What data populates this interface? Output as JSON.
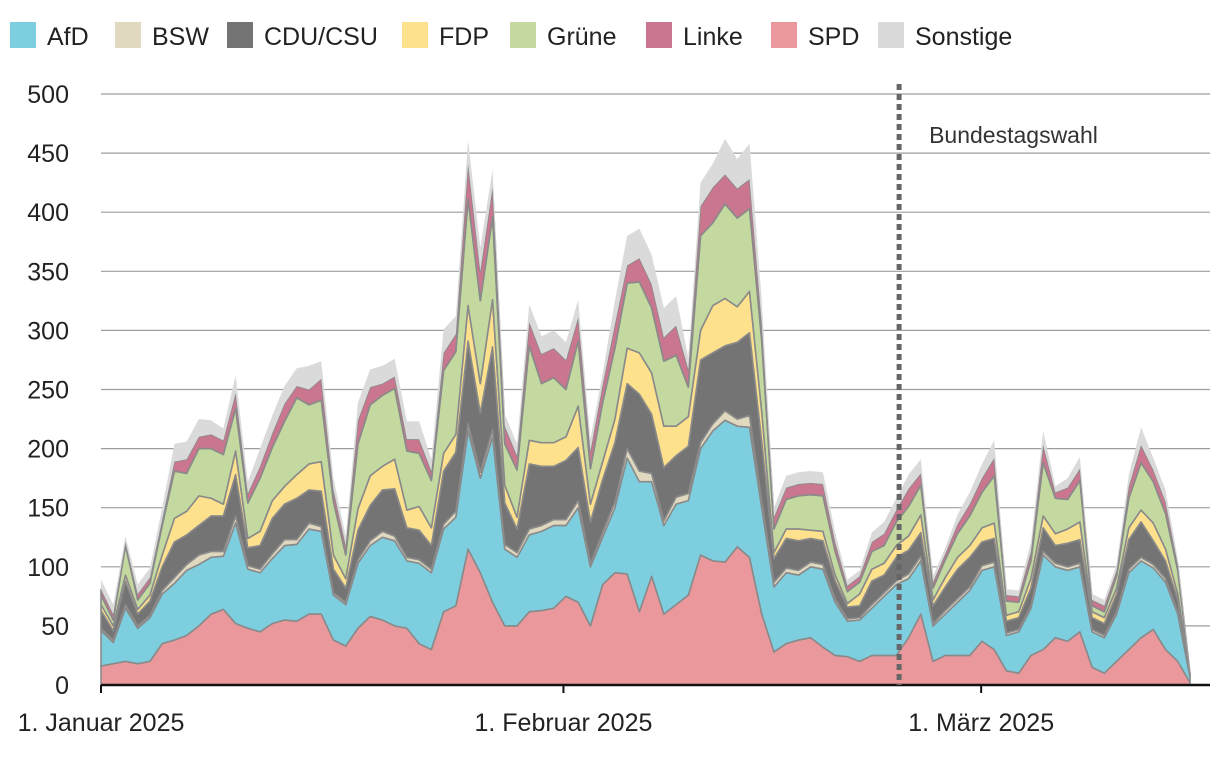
{
  "chart_data": {
    "type": "area",
    "stacked": true,
    "title": "",
    "xlabel": "",
    "ylabel": "",
    "ylim": [
      0,
      500
    ],
    "yticks": [
      0,
      50,
      100,
      150,
      200,
      250,
      300,
      350,
      400,
      450,
      500
    ],
    "x_start_day": 1,
    "x_end_day": 74,
    "xticks": [
      {
        "day": 1,
        "label": "1. Januar 2025"
      },
      {
        "day": 32,
        "label": "1. Februar 2025"
      },
      {
        "day": 60,
        "label": "1. März 2025"
      }
    ],
    "annotation": {
      "day": 54.5,
      "label": "Bundestagswahl"
    },
    "grid": true,
    "legend_position": "top",
    "series": [
      {
        "name": "SPD",
        "color": "#ea989c",
        "values": [
          16,
          18,
          20,
          18,
          20,
          35,
          38,
          42,
          50,
          60,
          64,
          52,
          48,
          45,
          52,
          55,
          54,
          60,
          60,
          38,
          33,
          48,
          58,
          55,
          50,
          48,
          35,
          30,
          62,
          67,
          115,
          95,
          70,
          50,
          50,
          62,
          63,
          65,
          75,
          70,
          50,
          85,
          95,
          94,
          62,
          92,
          60,
          68,
          76,
          110,
          105,
          104,
          117,
          108,
          60,
          28,
          35,
          38,
          40,
          32,
          25,
          24,
          20,
          25,
          25,
          25,
          40,
          60,
          20,
          25,
          25,
          25,
          37,
          30,
          12,
          10,
          25,
          30,
          40,
          37,
          45,
          15,
          10,
          20,
          30,
          40,
          47,
          30,
          20,
          2
        ]
      },
      {
        "name": "AfD",
        "color": "#7dcfe0",
        "values": [
          30,
          18,
          45,
          30,
          37,
          42,
          48,
          55,
          52,
          48,
          45,
          85,
          50,
          50,
          55,
          63,
          65,
          72,
          70,
          38,
          35,
          55,
          60,
          70,
          72,
          57,
          68,
          65,
          70,
          75,
          100,
          80,
          140,
          65,
          58,
          65,
          67,
          70,
          60,
          80,
          50,
          40,
          55,
          98,
          110,
          80,
          75,
          85,
          80,
          90,
          110,
          120,
          102,
          110,
          90,
          55,
          60,
          55,
          60,
          66,
          45,
          30,
          35,
          40,
          50,
          60,
          50,
          45,
          30,
          35,
          45,
          55,
          60,
          70,
          30,
          35,
          40,
          80,
          60,
          60,
          55,
          30,
          30,
          40,
          65,
          65,
          52,
          57,
          40,
          5
        ]
      },
      {
        "name": "BSW",
        "color": "#e0d9c0",
        "values": [
          2,
          2,
          3,
          2,
          2,
          3,
          5,
          5,
          8,
          5,
          4,
          6,
          3,
          3,
          4,
          5,
          4,
          5,
          4,
          2,
          2,
          3,
          4,
          5,
          4,
          3,
          3,
          3,
          4,
          5,
          6,
          5,
          6,
          4,
          4,
          5,
          5,
          5,
          5,
          6,
          3,
          4,
          5,
          8,
          9,
          7,
          4,
          6,
          6,
          5,
          6,
          8,
          6,
          10,
          6,
          4,
          4,
          4,
          4,
          4,
          3,
          2,
          2,
          3,
          3,
          3,
          4,
          4,
          2,
          3,
          3,
          3,
          4,
          4,
          2,
          2,
          2,
          3,
          3,
          3,
          3,
          2,
          2,
          2,
          3,
          3,
          3,
          3,
          2,
          0
        ]
      },
      {
        "name": "CDU/CSU",
        "color": "#747474",
        "values": [
          15,
          8,
          20,
          10,
          12,
          20,
          30,
          25,
          25,
          30,
          30,
          35,
          15,
          20,
          30,
          30,
          35,
          28,
          30,
          20,
          12,
          25,
          30,
          35,
          40,
          25,
          25,
          20,
          45,
          50,
          70,
          50,
          70,
          35,
          20,
          55,
          50,
          45,
          50,
          45,
          35,
          45,
          50,
          55,
          65,
          50,
          45,
          35,
          40,
          70,
          60,
          55,
          65,
          70,
          50,
          20,
          25,
          25,
          20,
          20,
          15,
          10,
          10,
          20,
          15,
          20,
          20,
          20,
          15,
          20,
          25,
          25,
          20,
          20,
          10,
          10,
          15,
          20,
          15,
          20,
          20,
          10,
          10,
          15,
          25,
          30,
          20,
          15,
          10,
          2
        ]
      },
      {
        "name": "FDP",
        "color": "#fde18c",
        "values": [
          5,
          4,
          5,
          4,
          5,
          10,
          20,
          20,
          25,
          15,
          10,
          20,
          8,
          12,
          15,
          15,
          20,
          22,
          25,
          12,
          8,
          18,
          25,
          20,
          25,
          15,
          20,
          15,
          15,
          15,
          30,
          25,
          40,
          15,
          10,
          20,
          20,
          20,
          20,
          35,
          15,
          15,
          20,
          30,
          35,
          35,
          35,
          25,
          25,
          25,
          40,
          40,
          30,
          35,
          25,
          5,
          8,
          10,
          7,
          8,
          5,
          3,
          10,
          10,
          10,
          10,
          12,
          15,
          5,
          8,
          10,
          10,
          12,
          13,
          5,
          5,
          8,
          10,
          10,
          12,
          15,
          5,
          5,
          5,
          10,
          10,
          15,
          10,
          5,
          0
        ]
      },
      {
        "name": "Grüne",
        "color": "#c3d99f",
        "values": [
          8,
          5,
          25,
          8,
          10,
          25,
          40,
          32,
          40,
          42,
          42,
          36,
          30,
          45,
          45,
          55,
          65,
          50,
          52,
          45,
          20,
          55,
          60,
          60,
          60,
          50,
          45,
          40,
          70,
          70,
          90,
          70,
          70,
          35,
          40,
          80,
          50,
          55,
          40,
          55,
          30,
          50,
          60,
          55,
          60,
          55,
          55,
          60,
          25,
          80,
          70,
          80,
          75,
          70,
          60,
          20,
          25,
          28,
          30,
          30,
          20,
          10,
          10,
          15,
          15,
          20,
          25,
          25,
          10,
          15,
          20,
          25,
          30,
          40,
          12,
          8,
          15,
          45,
          30,
          25,
          35,
          5,
          5,
          10,
          25,
          40,
          35,
          30,
          20,
          0
        ]
      },
      {
        "name": "Linke",
        "color": "#c9768e",
        "values": [
          5,
          5,
          3,
          5,
          5,
          5,
          8,
          12,
          10,
          12,
          12,
          13,
          8,
          10,
          12,
          15,
          10,
          13,
          18,
          10,
          8,
          20,
          15,
          10,
          10,
          10,
          12,
          8,
          15,
          15,
          30,
          25,
          25,
          15,
          12,
          20,
          25,
          25,
          25,
          20,
          15,
          15,
          20,
          15,
          20,
          20,
          20,
          25,
          15,
          25,
          30,
          25,
          25,
          25,
          15,
          10,
          10,
          10,
          10,
          10,
          8,
          5,
          5,
          8,
          10,
          10,
          15,
          10,
          5,
          5,
          8,
          10,
          12,
          15,
          5,
          5,
          8,
          15,
          5,
          10,
          10,
          5,
          5,
          5,
          10,
          15,
          10,
          10,
          5,
          0
        ]
      },
      {
        "name": "Sonstige",
        "color": "#dadada",
        "values": [
          8,
          8,
          5,
          8,
          8,
          10,
          15,
          15,
          15,
          12,
          10,
          15,
          10,
          15,
          15,
          15,
          15,
          20,
          15,
          10,
          8,
          15,
          15,
          15,
          15,
          15,
          15,
          10,
          20,
          15,
          20,
          20,
          15,
          10,
          10,
          15,
          15,
          15,
          15,
          15,
          10,
          10,
          20,
          25,
          25,
          25,
          25,
          25,
          10,
          20,
          20,
          30,
          25,
          30,
          20,
          8,
          10,
          10,
          10,
          10,
          8,
          5,
          5,
          8,
          10,
          10,
          12,
          12,
          5,
          5,
          8,
          10,
          12,
          15,
          5,
          5,
          8,
          12,
          5,
          8,
          10,
          5,
          5,
          5,
          10,
          15,
          10,
          10,
          5,
          1
        ]
      }
    ]
  }
}
